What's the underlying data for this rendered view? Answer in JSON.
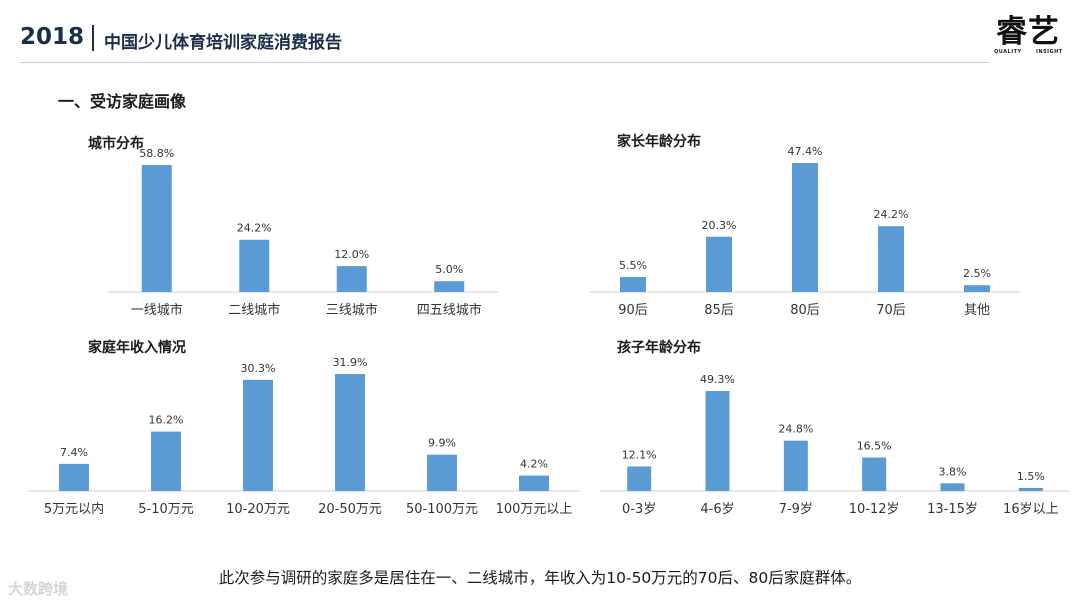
{
  "header": {
    "year": "2018",
    "title": "中国少儿体育培训家庭消费报告",
    "logo_text": "睿艺",
    "logo_sub_left": "QUALITY",
    "logo_sub_right": "INSIGHT"
  },
  "section_title": "一、受访家庭画像",
  "conclusion": "此次参与调研的家庭多是居住在一、二线城市，年收入为10-50万元的70后、80后家庭群体。",
  "footer_brand": "大数跨境",
  "colors": {
    "bar": "#5b9bd5",
    "title": "#1a2f4a"
  },
  "chart_data": [
    {
      "type": "bar",
      "title": "城市分布",
      "categories": [
        "一线城市",
        "二线城市",
        "三线城市",
        "四五线城市"
      ],
      "values": [
        58.8,
        24.2,
        12.0,
        5.0
      ],
      "value_labels": [
        "58.8%",
        "24.2%",
        "12.0%",
        "5.0%"
      ],
      "grid": false,
      "legend": "none"
    },
    {
      "type": "bar",
      "title": "家长年龄分布",
      "categories": [
        "90后",
        "85后",
        "80后",
        "70后",
        "其他"
      ],
      "values": [
        5.5,
        20.3,
        47.4,
        24.2,
        2.5
      ],
      "value_labels": [
        "5.5%",
        "20.3%",
        "47.4%",
        "24.2%",
        "2.5%"
      ],
      "grid": false,
      "legend": "none"
    },
    {
      "type": "bar",
      "title": "家庭年收入情况",
      "categories": [
        "5万元以内",
        "5-10万元",
        "10-20万元",
        "20-50万元",
        "50-100万元",
        "100万元以上"
      ],
      "values": [
        7.4,
        16.2,
        30.3,
        31.9,
        9.9,
        4.2
      ],
      "value_labels": [
        "7.4%",
        "16.2%",
        "30.3%",
        "31.9%",
        "9.9%",
        "4.2%"
      ],
      "grid": false,
      "legend": "none"
    },
    {
      "type": "bar",
      "title": "孩子年龄分布",
      "categories": [
        "0-3岁",
        "4-6岁",
        "7-9岁",
        "10-12岁",
        "13-15岁",
        "16岁以上"
      ],
      "values": [
        12.1,
        49.3,
        24.8,
        16.5,
        3.8,
        1.5
      ],
      "value_labels": [
        "12.1%",
        "49.3%",
        "24.8%",
        "16.5%",
        "3.8%",
        "1.5%"
      ],
      "grid": false,
      "legend": "none"
    }
  ]
}
